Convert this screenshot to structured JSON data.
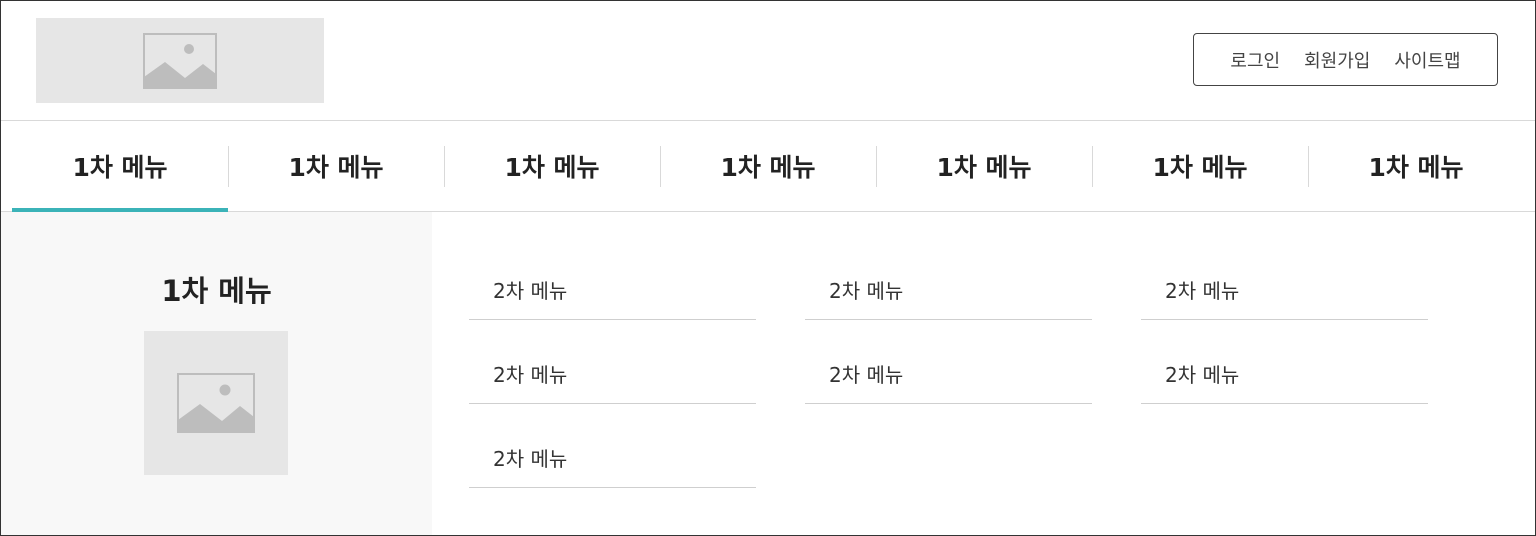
{
  "header": {
    "logo_icon": "image-placeholder-icon",
    "util": [
      "로그인",
      "회원가입",
      "사이트맵"
    ]
  },
  "gnb": {
    "items": [
      "1차 메뉴",
      "1차 메뉴",
      "1차 메뉴",
      "1차 메뉴",
      "1차 메뉴",
      "1차 메뉴",
      "1차 메뉴"
    ],
    "active_index": 0
  },
  "panel": {
    "title": "1차 메뉴",
    "image_icon": "image-placeholder-icon",
    "sub_items": [
      "2차 메뉴",
      "2차 메뉴",
      "2차 메뉴",
      "2차 메뉴",
      "2차 메뉴",
      "2차 메뉴",
      "2차 메뉴"
    ]
  },
  "colors": {
    "accent": "#3bb3b8",
    "placeholder_bg": "#e6e6e6",
    "side_bg": "#f8f8f8"
  }
}
